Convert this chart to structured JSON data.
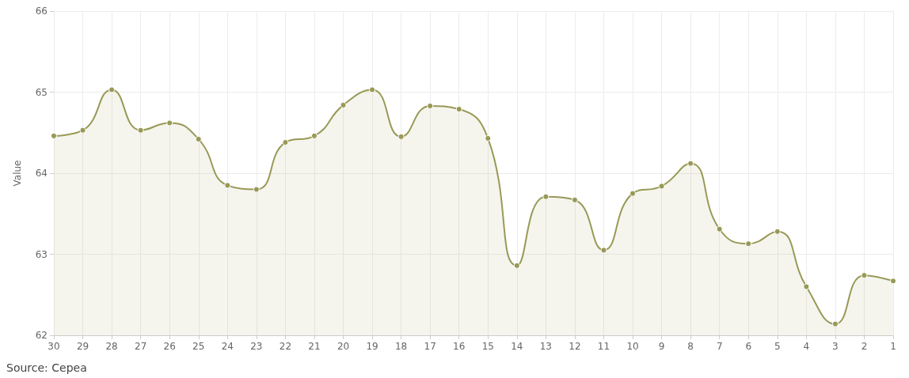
{
  "chart_data": {
    "type": "area",
    "ylabel": "Value",
    "categories": [
      "30",
      "29",
      "28",
      "27",
      "26",
      "25",
      "24",
      "23",
      "22",
      "21",
      "20",
      "19",
      "18",
      "17",
      "16",
      "15",
      "14",
      "13",
      "12",
      "11",
      "10",
      "9",
      "8",
      "7",
      "6",
      "5",
      "4",
      "3",
      "2",
      "1"
    ],
    "series": [
      {
        "color": "#999957",
        "values": [
          64.46,
          64.53,
          65.03,
          64.53,
          64.62,
          64.42,
          63.85,
          63.8,
          64.38,
          64.46,
          64.84,
          65.03,
          64.45,
          64.83,
          64.79,
          64.43,
          62.86,
          63.71,
          63.67,
          63.05,
          63.75,
          63.84,
          64.12,
          63.31,
          63.13,
          63.28,
          62.6,
          62.14,
          62.74,
          62.67
        ]
      }
    ],
    "ylim": [
      62,
      66
    ],
    "yticks": [
      62,
      63,
      64,
      65,
      66
    ],
    "grid": true,
    "marker": "circle",
    "line_style": "solid",
    "annotations": [
      "Source: Cepea"
    ]
  }
}
